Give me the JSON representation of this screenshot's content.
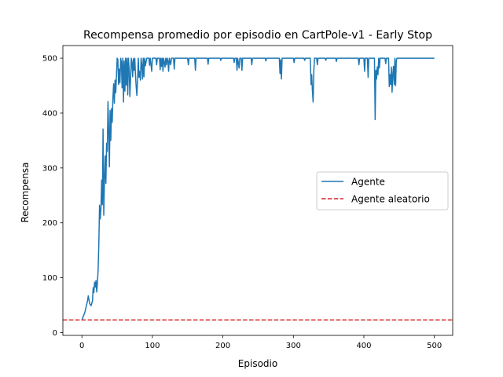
{
  "chart_data": {
    "type": "line",
    "title": "Recompensa promedio por episodio en CartPole-v1 - Early Stop",
    "xlabel": "Episodio",
    "ylabel": "Recompensa",
    "xlim": [
      -27,
      526
    ],
    "ylim": [
      -5,
      523
    ],
    "xticks": [
      0,
      100,
      200,
      300,
      400,
      500
    ],
    "yticks": [
      0,
      100,
      200,
      300,
      400,
      500
    ],
    "grid": false,
    "legend_position": "center-right",
    "series": [
      {
        "name": "Agente",
        "color": "#1f77b4",
        "style": "solid",
        "points": [
          [
            0,
            22
          ],
          [
            2,
            30
          ],
          [
            4,
            36
          ],
          [
            6,
            47
          ],
          [
            8,
            58
          ],
          [
            9,
            67
          ],
          [
            11,
            53
          ],
          [
            13,
            49
          ],
          [
            15,
            58
          ],
          [
            16,
            82
          ],
          [
            17,
            73
          ],
          [
            18,
            92
          ],
          [
            19,
            83
          ],
          [
            20,
            95
          ],
          [
            21,
            74
          ],
          [
            22,
            90
          ],
          [
            23,
            115
          ],
          [
            24,
            160
          ],
          [
            25,
            232
          ],
          [
            26,
            207
          ],
          [
            27,
            226
          ],
          [
            28,
            278
          ],
          [
            29,
            233
          ],
          [
            30,
            371
          ],
          [
            31,
            214
          ],
          [
            32,
            278
          ],
          [
            33,
            322
          ],
          [
            34,
            272
          ],
          [
            35,
            345
          ],
          [
            36,
            330
          ],
          [
            37,
            421
          ],
          [
            38,
            367
          ],
          [
            39,
            302
          ],
          [
            40,
            405
          ],
          [
            41,
            350
          ],
          [
            42,
            408
          ],
          [
            43,
            383
          ],
          [
            44,
            428
          ],
          [
            45,
            453
          ],
          [
            46,
            418
          ],
          [
            47,
            460
          ],
          [
            48,
            437
          ],
          [
            49,
            468
          ],
          [
            50,
            500
          ],
          [
            51,
            498
          ],
          [
            52,
            452
          ],
          [
            53,
            480
          ],
          [
            54,
            455
          ],
          [
            55,
            500
          ],
          [
            56,
            493
          ],
          [
            57,
            446
          ],
          [
            58,
            500
          ],
          [
            59,
            420
          ],
          [
            60,
            495
          ],
          [
            61,
            440
          ],
          [
            62,
            500
          ],
          [
            63,
            451
          ],
          [
            64,
            500
          ],
          [
            65,
            433
          ],
          [
            66,
            500
          ],
          [
            67,
            480
          ],
          [
            68,
            430
          ],
          [
            69,
            460
          ],
          [
            70,
            500
          ],
          [
            71,
            492
          ],
          [
            72,
            466
          ],
          [
            73,
            499
          ],
          [
            74,
            478
          ],
          [
            75,
            500
          ],
          [
            76,
            470
          ],
          [
            77,
            448
          ],
          [
            78,
            432
          ],
          [
            79,
            462
          ],
          [
            80,
            500
          ],
          [
            81,
            465
          ],
          [
            82,
            476
          ],
          [
            83,
            460
          ],
          [
            84,
            500
          ],
          [
            85,
            488
          ],
          [
            86,
            462
          ],
          [
            87,
            500
          ],
          [
            88,
            466
          ],
          [
            89,
            500
          ],
          [
            90,
            486
          ],
          [
            92,
            500
          ],
          [
            95,
            500
          ],
          [
            96,
            487
          ],
          [
            97,
            500
          ],
          [
            99,
            476
          ],
          [
            100,
            500
          ],
          [
            105,
            500
          ],
          [
            106,
            488
          ],
          [
            107,
            500
          ],
          [
            110,
            500
          ],
          [
            111,
            479
          ],
          [
            112,
            500
          ],
          [
            113,
            485
          ],
          [
            114,
            500
          ],
          [
            115,
            476
          ],
          [
            116,
            500
          ],
          [
            118,
            484
          ],
          [
            119,
            500
          ],
          [
            120,
            488
          ],
          [
            121,
            500
          ],
          [
            122,
            495
          ],
          [
            123,
            476
          ],
          [
            124,
            500
          ],
          [
            126,
            488
          ],
          [
            127,
            500
          ],
          [
            130,
            500
          ],
          [
            131,
            480
          ],
          [
            132,
            500
          ],
          [
            150,
            500
          ],
          [
            151,
            488
          ],
          [
            152,
            500
          ],
          [
            160,
            500
          ],
          [
            161,
            478
          ],
          [
            162,
            500
          ],
          [
            178,
            500
          ],
          [
            179,
            489
          ],
          [
            180,
            500
          ],
          [
            196,
            500
          ],
          [
            197,
            496
          ],
          [
            198,
            500
          ],
          [
            215,
            500
          ],
          [
            216,
            492
          ],
          [
            217,
            500
          ],
          [
            219,
            500
          ],
          [
            220,
            478
          ],
          [
            221,
            500
          ],
          [
            223,
            482
          ],
          [
            224,
            500
          ],
          [
            226,
            500
          ],
          [
            227,
            478
          ],
          [
            228,
            500
          ],
          [
            240,
            500
          ],
          [
            241,
            488
          ],
          [
            242,
            500
          ],
          [
            260,
            500
          ],
          [
            261,
            495
          ],
          [
            262,
            500
          ],
          [
            280,
            500
          ],
          [
            281,
            472
          ],
          [
            282,
            497
          ],
          [
            283,
            462
          ],
          [
            284,
            500
          ],
          [
            300,
            500
          ],
          [
            301,
            492
          ],
          [
            302,
            500
          ],
          [
            315,
            500
          ],
          [
            316,
            496
          ],
          [
            317,
            500
          ],
          [
            324,
            500
          ],
          [
            325,
            452
          ],
          [
            326,
            470
          ],
          [
            327,
            440
          ],
          [
            328,
            420
          ],
          [
            329,
            478
          ],
          [
            330,
            500
          ],
          [
            333,
            500
          ],
          [
            334,
            488
          ],
          [
            335,
            500
          ],
          [
            345,
            500
          ],
          [
            346,
            496
          ],
          [
            347,
            500
          ],
          [
            360,
            500
          ],
          [
            361,
            494
          ],
          [
            362,
            500
          ],
          [
            392,
            500
          ],
          [
            393,
            488
          ],
          [
            394,
            500
          ],
          [
            400,
            500
          ],
          [
            401,
            476
          ],
          [
            402,
            500
          ],
          [
            405,
            500
          ],
          [
            406,
            465
          ],
          [
            407,
            500
          ],
          [
            415,
            500
          ],
          [
            416,
            388
          ],
          [
            417,
            478
          ],
          [
            418,
            462
          ],
          [
            419,
            484
          ],
          [
            420,
            470
          ],
          [
            421,
            500
          ],
          [
            422,
            482
          ],
          [
            423,
            500
          ],
          [
            430,
            500
          ],
          [
            431,
            490
          ],
          [
            432,
            500
          ],
          [
            435,
            500
          ],
          [
            436,
            448
          ],
          [
            437,
            470
          ],
          [
            438,
            452
          ],
          [
            439,
            484
          ],
          [
            440,
            438
          ],
          [
            441,
            470
          ],
          [
            442,
            485
          ],
          [
            443,
            452
          ],
          [
            444,
            500
          ],
          [
            445,
            450
          ],
          [
            446,
            496
          ],
          [
            447,
            500
          ],
          [
            450,
            500
          ],
          [
            500,
            500
          ]
        ]
      },
      {
        "name": "Agente aleatorio",
        "color": "#d62728",
        "style": "dashed",
        "constant_y": 23
      }
    ]
  }
}
